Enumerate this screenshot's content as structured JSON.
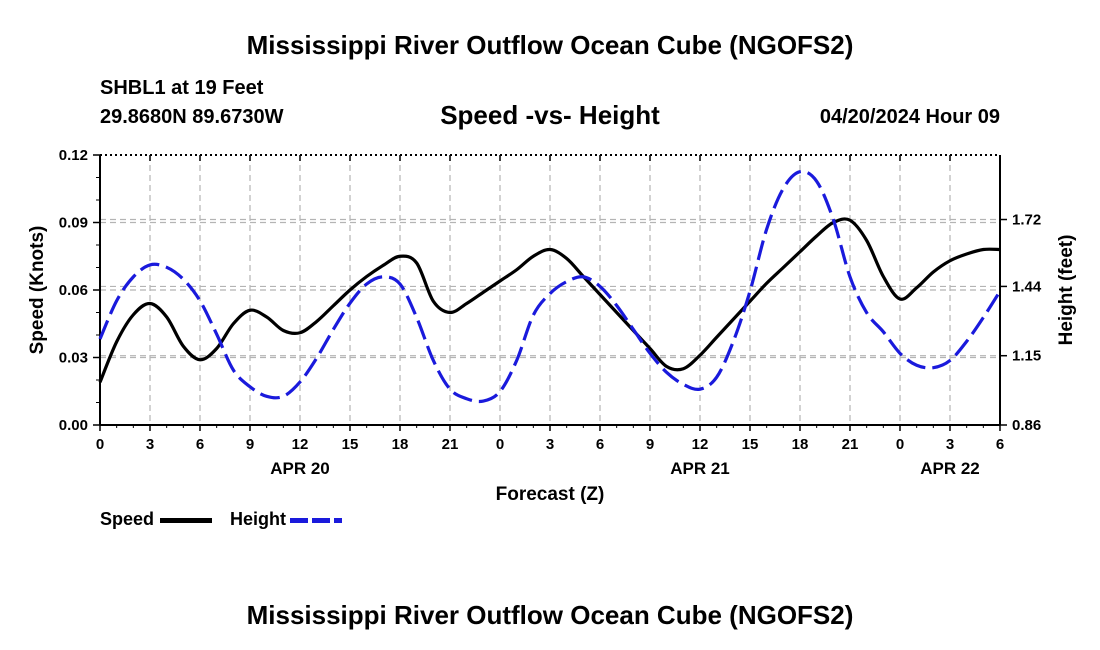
{
  "header": {
    "title": "Mississippi River Outflow Ocean Cube (NGOFS2)",
    "station": "SHBL1 at 19 Feet",
    "coords": "29.8680N  89.6730W",
    "subtitle": "Speed -vs- Height",
    "datetime": "04/20/2024 Hour 09"
  },
  "footer": {
    "title": "Mississippi River Outflow Ocean Cube (NGOFS2)"
  },
  "legend": {
    "speed_label": "Speed",
    "height_label": "Height"
  },
  "colors": {
    "speed": "#000000",
    "height": "#1a1adc",
    "grid": "#b4b4b4"
  },
  "chart_data": {
    "type": "line",
    "title": "Speed -vs- Height",
    "xlabel": "Forecast (Z)",
    "ylabel": "Speed (Knots)",
    "y2label": "Height (feet)",
    "x_unit": "hours since 2024-04-20 00Z",
    "xlim": [
      0,
      54
    ],
    "ylim": [
      0,
      0.12
    ],
    "y2lim": [
      0.86,
      1.99
    ],
    "x_tick_values": [
      0,
      3,
      6,
      9,
      12,
      15,
      18,
      21,
      24,
      27,
      30,
      33,
      36,
      39,
      42,
      45,
      48,
      51,
      54
    ],
    "x_tick_labels": [
      "0",
      "3",
      "6",
      "9",
      "12",
      "15",
      "18",
      "21",
      "0",
      "3",
      "6",
      "9",
      "12",
      "15",
      "18",
      "21",
      "0",
      "3",
      "6"
    ],
    "date_labels": [
      {
        "x": 12,
        "label": "APR 20"
      },
      {
        "x": 36,
        "label": "APR 21"
      },
      {
        "x": 51,
        "label": "APR 22"
      }
    ],
    "y_ticks": [
      0,
      0.03,
      0.06,
      0.09,
      0.12
    ],
    "y_tick_labels": [
      "0.00",
      "0.03",
      "0.06",
      "0.09",
      "0.12"
    ],
    "y2_ticks": [
      0.86,
      1.15,
      1.44,
      1.72
    ],
    "y2_tick_labels": [
      "0.86",
      "1.15",
      "1.44",
      "1.72"
    ],
    "grid": true,
    "series": [
      {
        "name": "Speed",
        "axis": "left",
        "style": "solid",
        "x": [
          0,
          1,
          2,
          3,
          4,
          5,
          6,
          7,
          8,
          9,
          10,
          11,
          12,
          13,
          14,
          15,
          16,
          17,
          18,
          19,
          20,
          21,
          22,
          23,
          24,
          25,
          26,
          27,
          28,
          29,
          30,
          31,
          32,
          33,
          34,
          35,
          36,
          37,
          38,
          39,
          40,
          41,
          42,
          43,
          44,
          45,
          46,
          47,
          48,
          49,
          50,
          51,
          52,
          53,
          54
        ],
        "values": [
          0.019,
          0.037,
          0.049,
          0.054,
          0.048,
          0.035,
          0.029,
          0.034,
          0.045,
          0.051,
          0.048,
          0.042,
          0.041,
          0.046,
          0.053,
          0.06,
          0.066,
          0.071,
          0.075,
          0.072,
          0.055,
          0.05,
          0.054,
          0.059,
          0.064,
          0.069,
          0.075,
          0.078,
          0.074,
          0.066,
          0.058,
          0.05,
          0.042,
          0.034,
          0.026,
          0.025,
          0.031,
          0.039,
          0.047,
          0.055,
          0.063,
          0.07,
          0.077,
          0.084,
          0.09,
          0.091,
          0.082,
          0.066,
          0.056,
          0.061,
          0.068,
          0.073,
          0.076,
          0.078,
          0.078
        ]
      },
      {
        "name": "Height",
        "axis": "right",
        "style": "dashed",
        "x": [
          0,
          1,
          2,
          3,
          4,
          5,
          6,
          7,
          8,
          9,
          10,
          11,
          12,
          13,
          14,
          15,
          16,
          17,
          18,
          19,
          20,
          21,
          22,
          23,
          24,
          25,
          26,
          27,
          28,
          29,
          30,
          31,
          32,
          33,
          34,
          35,
          36,
          37,
          38,
          39,
          40,
          41,
          42,
          43,
          44,
          45,
          46,
          47,
          48,
          49,
          50,
          51,
          52,
          53,
          54
        ],
        "values": [
          1.22,
          1.38,
          1.48,
          1.53,
          1.52,
          1.47,
          1.38,
          1.24,
          1.09,
          1.02,
          0.98,
          0.98,
          1.04,
          1.14,
          1.26,
          1.37,
          1.45,
          1.48,
          1.45,
          1.31,
          1.13,
          1.01,
          0.97,
          0.96,
          1.0,
          1.13,
          1.32,
          1.41,
          1.46,
          1.48,
          1.44,
          1.36,
          1.26,
          1.16,
          1.08,
          1.03,
          1.01,
          1.06,
          1.21,
          1.42,
          1.68,
          1.85,
          1.92,
          1.88,
          1.72,
          1.48,
          1.33,
          1.25,
          1.16,
          1.11,
          1.1,
          1.13,
          1.21,
          1.31,
          1.42
        ]
      }
    ]
  }
}
